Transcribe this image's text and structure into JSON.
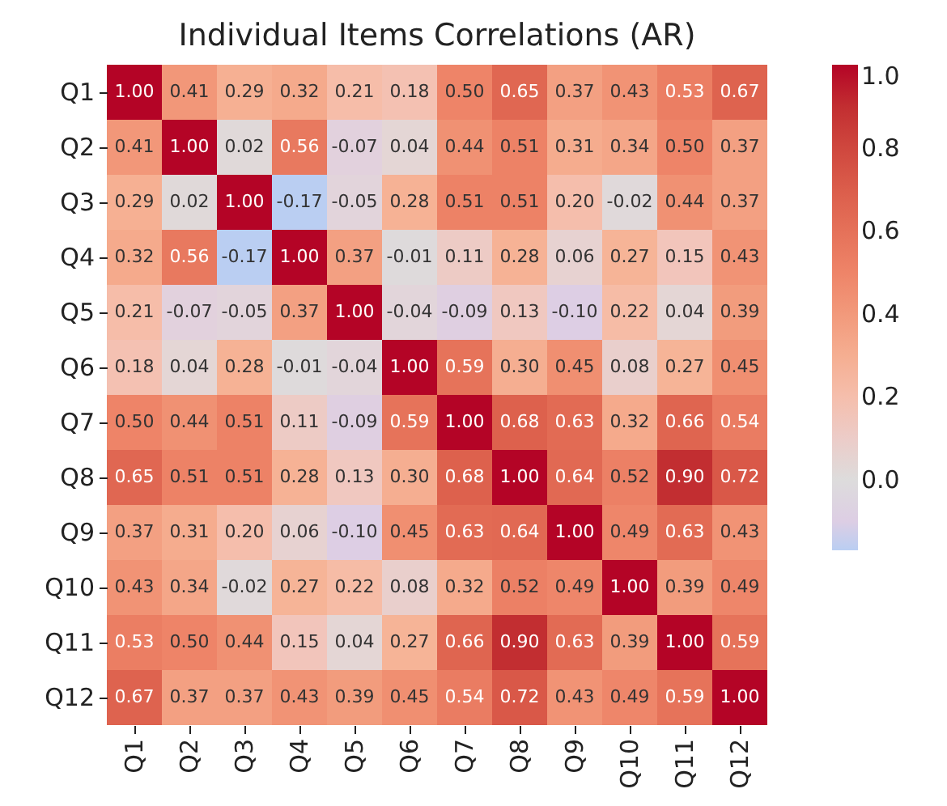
{
  "chart_data": {
    "type": "heatmap",
    "title": "Individual Items Correlations (AR)",
    "categories": [
      "Q1",
      "Q2",
      "Q3",
      "Q4",
      "Q5",
      "Q6",
      "Q7",
      "Q8",
      "Q9",
      "Q10",
      "Q11",
      "Q12"
    ],
    "y_categories": [
      "Q1",
      "Q2",
      "Q3",
      "Q4",
      "Q5",
      "Q6",
      "Q7",
      "Q8",
      "Q9",
      "Q10",
      "Q11",
      "Q12"
    ],
    "cells": [
      [
        1.0,
        0.41,
        0.29,
        0.32,
        0.21,
        0.18,
        0.5,
        0.65,
        0.37,
        0.43,
        0.53,
        0.67
      ],
      [
        0.41,
        1.0,
        0.02,
        0.56,
        -0.07,
        0.04,
        0.44,
        0.51,
        0.31,
        0.34,
        0.5,
        0.37
      ],
      [
        0.29,
        0.02,
        1.0,
        -0.17,
        -0.05,
        0.28,
        0.51,
        0.51,
        0.2,
        -0.02,
        0.44,
        0.37
      ],
      [
        0.32,
        0.56,
        -0.17,
        1.0,
        0.37,
        -0.01,
        0.11,
        0.28,
        0.06,
        0.27,
        0.15,
        0.43
      ],
      [
        0.21,
        -0.07,
        -0.05,
        0.37,
        1.0,
        -0.04,
        -0.09,
        0.13,
        -0.1,
        0.22,
        0.04,
        0.39
      ],
      [
        0.18,
        0.04,
        0.28,
        -0.01,
        -0.04,
        1.0,
        0.59,
        0.3,
        0.45,
        0.08,
        0.27,
        0.45
      ],
      [
        0.5,
        0.44,
        0.51,
        0.11,
        -0.09,
        0.59,
        1.0,
        0.68,
        0.63,
        0.32,
        0.66,
        0.54
      ],
      [
        0.65,
        0.51,
        0.51,
        0.28,
        0.13,
        0.3,
        0.68,
        1.0,
        0.64,
        0.52,
        0.9,
        0.72
      ],
      [
        0.37,
        0.31,
        0.2,
        0.06,
        -0.1,
        0.45,
        0.63,
        0.64,
        1.0,
        0.49,
        0.63,
        0.43
      ],
      [
        0.43,
        0.34,
        -0.02,
        0.27,
        0.22,
        0.08,
        0.32,
        0.52,
        0.49,
        1.0,
        0.39,
        0.49
      ],
      [
        0.53,
        0.5,
        0.44,
        0.15,
        0.04,
        0.27,
        0.66,
        0.9,
        0.63,
        0.39,
        1.0,
        0.59
      ],
      [
        0.67,
        0.37,
        0.37,
        0.43,
        0.39,
        0.45,
        0.54,
        0.72,
        0.43,
        0.49,
        0.59,
        1.0
      ]
    ],
    "cell_labels": [
      [
        "1.00",
        "0.41",
        "0.29",
        "0.32",
        "0.21",
        "0.18",
        "0.50",
        "0.65",
        "0.37",
        "0.43",
        "0.53",
        "0.67"
      ],
      [
        "0.41",
        "1.00",
        "0.02",
        "0.56",
        "-0.07",
        "0.04",
        "0.44",
        "0.51",
        "0.31",
        "0.34",
        "0.50",
        "0.37"
      ],
      [
        "0.29",
        "0.02",
        "1.00",
        "-0.17",
        "-0.05",
        "0.28",
        "0.51",
        "0.51",
        "0.20",
        "-0.02",
        "0.44",
        "0.37"
      ],
      [
        "0.32",
        "0.56",
        "-0.17",
        "1.00",
        "0.37",
        "-0.01",
        "0.11",
        "0.28",
        "0.06",
        "0.27",
        "0.15",
        "0.43"
      ],
      [
        "0.21",
        "-0.07",
        "-0.05",
        "0.37",
        "1.00",
        "-0.04",
        "-0.09",
        "0.13",
        "-0.10",
        "0.22",
        "0.04",
        "0.39"
      ],
      [
        "0.18",
        "0.04",
        "0.28",
        "-0.01",
        "-0.04",
        "1.00",
        "0.59",
        "0.30",
        "0.45",
        "0.08",
        "0.27",
        "0.45"
      ],
      [
        "0.50",
        "0.44",
        "0.51",
        "0.11",
        "-0.09",
        "0.59",
        "1.00",
        "0.68",
        "0.63",
        "0.32",
        "0.66",
        "0.54"
      ],
      [
        "0.65",
        "0.51",
        "0.51",
        "0.28",
        "0.13",
        "0.30",
        "0.68",
        "1.00",
        "0.64",
        "0.52",
        "0.90",
        "0.72"
      ],
      [
        "0.37",
        "0.31",
        "0.20",
        "0.06",
        "-0.10",
        "0.45",
        "0.63",
        "0.64",
        "1.00",
        "0.49",
        "0.63",
        "0.43"
      ],
      [
        "0.43",
        "0.34",
        "-0.02",
        "0.27",
        "0.22",
        "0.08",
        "0.32",
        "0.52",
        "0.49",
        "1.00",
        "0.39",
        "0.49"
      ],
      [
        "0.53",
        "0.50",
        "0.44",
        "0.15",
        "0.04",
        "0.27",
        "0.66",
        "0.90",
        "0.63",
        "0.39",
        "1.00",
        "0.59"
      ],
      [
        "0.67",
        "0.37",
        "0.37",
        "0.43",
        "0.39",
        "0.45",
        "0.54",
        "0.72",
        "0.43",
        "0.49",
        "0.59",
        "1.00"
      ]
    ],
    "clim": [
      -0.17,
      1.0
    ],
    "cticks": [
      {
        "value": 0.0,
        "label": "0.0"
      },
      {
        "value": 0.2,
        "label": "0.2"
      },
      {
        "value": 0.4,
        "label": "0.4"
      },
      {
        "value": 0.6,
        "label": "0.6"
      },
      {
        "value": 0.8,
        "label": "0.8"
      },
      {
        "value": 1.0,
        "label": "1.0"
      }
    ],
    "data_labels": true
  }
}
